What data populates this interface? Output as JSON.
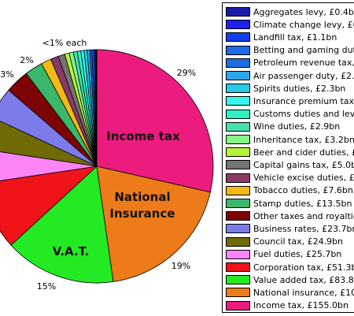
{
  "chart_data": {
    "type": "pie",
    "title": "",
    "slices": [
      {
        "label": "Income tax, £155.0bn",
        "value": 155.0,
        "color": "#ec1c7f"
      },
      {
        "label": "National insurance, £104.",
        "value": 104.0,
        "color": "#ee7b1a"
      },
      {
        "label": "Value added tax, £83.8bn",
        "value": 83.8,
        "color": "#23ea23"
      },
      {
        "label": "Corporation tax, £51.3bn",
        "value": 51.3,
        "color": "#f0131a"
      },
      {
        "label": "Fuel duties, £25.7bn",
        "value": 25.7,
        "color": "#fb84f7"
      },
      {
        "label": "Council tax, £24.9bn",
        "value": 24.9,
        "color": "#6f6a05"
      },
      {
        "label": "Business rates, £23.7bn",
        "value": 23.7,
        "color": "#7b7bea"
      },
      {
        "label": "Other taxes and royalties",
        "value": 18.0,
        "color": "#7d0404"
      },
      {
        "label": "Stamp duties, £13.5bn",
        "value": 13.5,
        "color": "#3ab76b"
      },
      {
        "label": "Tobacco duties, £7.6bn",
        "value": 7.6,
        "color": "#f2b918"
      },
      {
        "label": "Vehicle excise duties, £6.",
        "value": 6.0,
        "color": "#8b3a66"
      },
      {
        "label": "Capital gains tax, £5.0bn",
        "value": 5.0,
        "color": "#737373"
      },
      {
        "label": "Beer and cider duties, £3.",
        "value": 3.4,
        "color": "#b4f53a"
      },
      {
        "label": "Inheritance tax, £3.2bn",
        "value": 3.2,
        "color": "#86f886"
      },
      {
        "label": "Wine duties, £2.9bn",
        "value": 2.9,
        "color": "#45e1ac"
      },
      {
        "label": "Customs duties and levie",
        "value": 2.7,
        "color": "#2ff2c2"
      },
      {
        "label": "Insurance premium tax, £",
        "value": 2.4,
        "color": "#34f6ef"
      },
      {
        "label": "Spirits duties, £2.3bn",
        "value": 2.3,
        "color": "#27cbe6"
      },
      {
        "label": "Air passenger duty, £2.1b",
        "value": 2.1,
        "color": "#2aa6e6"
      },
      {
        "label": "Petroleum revenue tax, £",
        "value": 1.5,
        "color": "#1c6ee0"
      },
      {
        "label": "Betting and gaming dutie",
        "value": 1.4,
        "color": "#1f6ae8"
      },
      {
        "label": "Landfill tax, £1.1bn",
        "value": 1.1,
        "color": "#1240f0"
      },
      {
        "label": "Climate change levy, £0.7",
        "value": 0.7,
        "color": "#1f1ff2"
      },
      {
        "label": "Aggregates levy, £0.4bn",
        "value": 0.4,
        "color": "#1a1aa8"
      }
    ],
    "inner_labels": {
      "income": "Income tax",
      "ni_line1": "National",
      "ni_line2": "Insurance",
      "vat": "V.A.T."
    },
    "outer_labels": {
      "income_pct": "29%",
      "ni_pct": "19%",
      "vat_pct": "15%",
      "small_2": "2%",
      "small_3": "3%",
      "small_each": "<1% each"
    },
    "legend_placement": "right"
  }
}
